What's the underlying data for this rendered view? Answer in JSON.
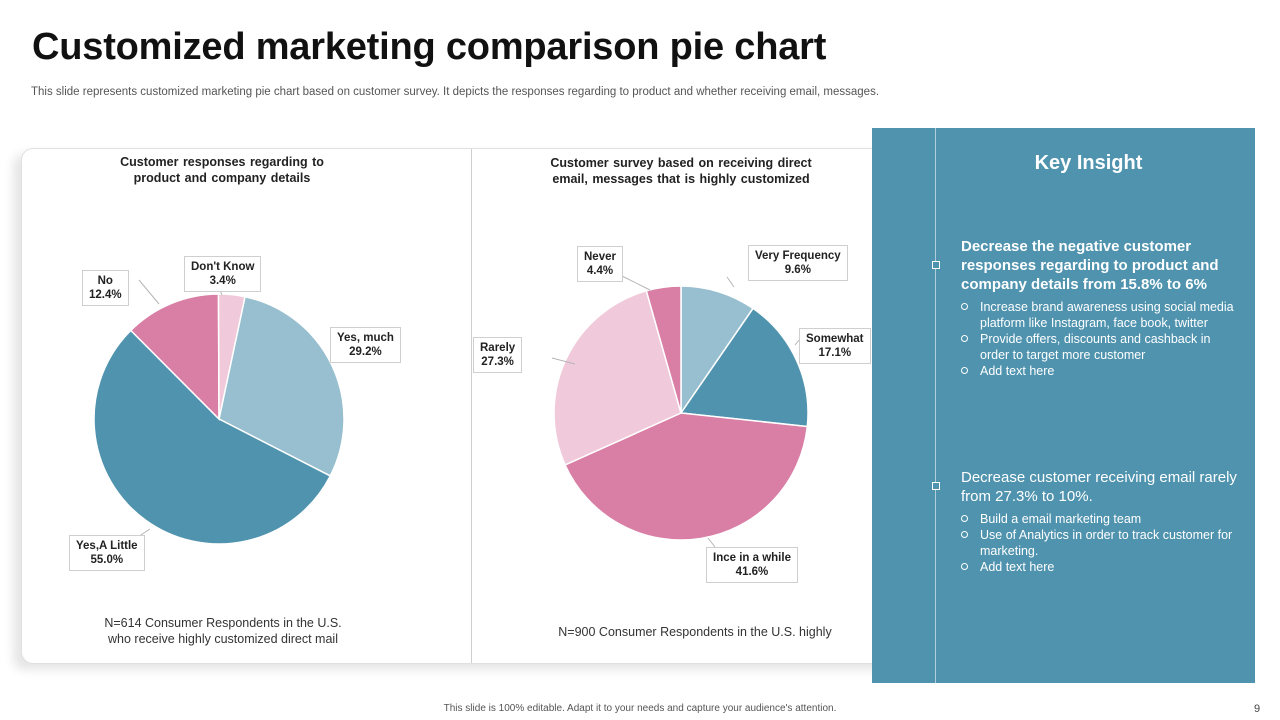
{
  "slide": {
    "title": "Customized marketing comparison pie chart",
    "subtitle": "This slide represents customized marketing pie chart based on customer survey. It depicts the responses regarding to product and whether receiving email, messages.",
    "footer": "This slide is 100% editable.  Adapt it to your needs and capture your audience's attention.",
    "page_number": "9"
  },
  "chart_data": [
    {
      "type": "pie",
      "title": "Customer  responses   regarding to product and company details",
      "title_lines": [
        "Customer  responses   regarding to",
        "product and company details"
      ],
      "note_lines": [
        "N=614 Consumer Respondents  in the U.S.",
        "who receive  highly customized direct mail"
      ],
      "start_angle_deg": 12,
      "slices": [
        {
          "label": "Yes, much",
          "value": 29.2,
          "display": "29.2%",
          "color": "#97bfcf"
        },
        {
          "label": "Yes,A  Little",
          "value": 55.0,
          "display": "55.0%",
          "color": "#4f93ae"
        },
        {
          "label": "No",
          "value": 12.4,
          "display": "12.4%",
          "color": "#d97ea5"
        },
        {
          "label": "Don't Know",
          "value": 3.4,
          "display": "3.4%",
          "color": "#f0cada"
        }
      ]
    },
    {
      "type": "pie",
      "title": "Customer survey based on receiving direct email, messages that is highly customized",
      "title_lines": [
        "Customer  survey  based on receiving direct",
        "email, messages that is highly customized"
      ],
      "note_lines": [
        "N=900 Consumer Respondents  in the U.S. highly"
      ],
      "start_angle_deg": 0,
      "slices": [
        {
          "label": "Very Frequency",
          "value": 9.6,
          "display": "9.6%",
          "color": "#97bfcf"
        },
        {
          "label": "Somewhat",
          "value": 17.1,
          "display": "17.1%",
          "color": "#4f93ae"
        },
        {
          "label": "Ince in a while",
          "value": 41.6,
          "display": "41.6%",
          "color": "#d97ea5"
        },
        {
          "label": "Rarely",
          "value": 27.3,
          "display": "27.3%",
          "color": "#f0cada"
        },
        {
          "label": "Never",
          "value": 4.4,
          "display": "4.4%",
          "color": "#d97ea5"
        }
      ]
    }
  ],
  "insight": {
    "title": "Key Insight",
    "blocks": [
      {
        "heading": "Decrease the negative customer responses regarding to product and company details from 15.8% to 6%",
        "items": [
          "Increase brand awareness  using social media platform like Instagram, face book, twitter",
          "Provide  offers,  discounts and cashback in order to target  more customer",
          "Add text here"
        ]
      },
      {
        "heading": "Decrease customer receiving email rarely from 27.3% to 10%.",
        "items": [
          "Build a email marketing team",
          "Use of Analytics in order to track customer for marketing.",
          "Add text here"
        ]
      }
    ]
  }
}
